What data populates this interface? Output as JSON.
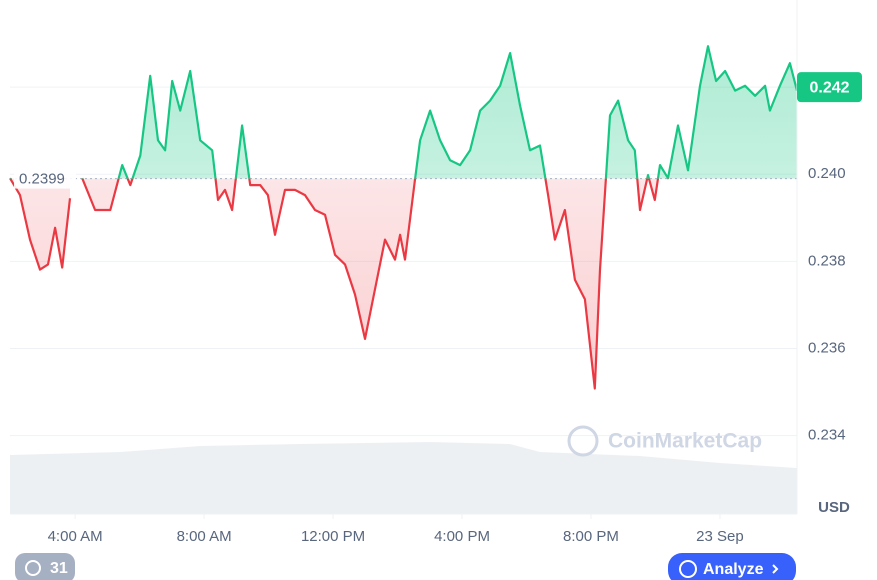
{
  "chart_data": {
    "type": "line",
    "x": [
      1.98,
      2.29,
      2.6,
      2.91,
      3.16,
      3.38,
      3.6,
      3.84,
      4.03,
      4.22,
      4.62,
      5.09,
      5.46,
      5.71,
      6.02,
      6.33,
      6.57,
      6.79,
      7.01,
      7.26,
      7.57,
      7.88,
      8.25,
      8.43,
      8.65,
      8.87,
      9.18,
      9.43,
      9.74,
      9.98,
      10.2,
      10.51,
      10.82,
      11.13,
      11.44,
      11.75,
      12.06,
      12.37,
      12.68,
      12.99,
      13.3,
      13.61,
      13.92,
      14.08,
      14.23,
      14.54,
      14.7,
      15.01,
      15.32,
      15.63,
      15.94,
      16.25,
      16.56,
      16.87,
      17.18,
      17.49,
      17.8,
      18.11,
      18.42,
      18.67,
      18.88,
      19.19,
      19.5,
      19.81,
      20.12,
      20.28,
      20.59,
      20.84,
      21.15,
      21.36,
      21.52,
      21.77,
      21.98,
      22.14,
      22.39,
      22.7,
      23.01,
      23.38,
      23.63,
      23.88,
      24.16,
      24.47,
      24.78,
      25.09,
      25.4,
      25.55,
      25.86,
      26.17,
      26.39
    ],
    "values": [
      0.23991,
      0.23952,
      0.2385,
      0.23781,
      0.23793,
      0.23877,
      0.23786,
      0.23945,
      null,
      0.23991,
      0.23918,
      0.23918,
      0.24021,
      0.23975,
      0.24043,
      0.24226,
      0.24078,
      0.24055,
      0.24214,
      0.24146,
      0.24237,
      0.24078,
      0.24055,
      0.23941,
      0.23964,
      0.23918,
      0.24112,
      0.23975,
      0.23975,
      0.23952,
      0.23861,
      0.23964,
      0.23964,
      0.23952,
      0.23918,
      0.23907,
      0.23815,
      0.23793,
      0.23724,
      0.23622,
      0.23736,
      0.2385,
      0.23804,
      0.23861,
      0.23804,
      0.23986,
      0.24078,
      0.24146,
      0.24078,
      0.24032,
      0.24021,
      0.24055,
      0.24146,
      0.24169,
      0.24203,
      0.24278,
      0.24157,
      0.24055,
      0.24066,
      0.23952,
      0.2385,
      0.23918,
      0.23758,
      0.23713,
      0.23508,
      0.23781,
      0.24135,
      0.24169,
      0.24078,
      0.24055,
      0.23918,
      0.23998,
      0.23941,
      0.24021,
      0.23991,
      0.24112,
      0.24009,
      0.24203,
      0.24294,
      0.24214,
      0.24237,
      0.24192,
      0.24203,
      0.2418,
      0.24203,
      0.24146,
      0.24203,
      0.24255,
      0.24192
    ],
    "baseline": 0.2399,
    "last_price": 0.242,
    "up_color": "#16c784",
    "down_color": "#ea3943",
    "xlim": [
      1.98,
      26.39
    ],
    "xticks": [
      {
        "value": 4,
        "label": "4:00 AM"
      },
      {
        "value": 8,
        "label": "8:00 AM"
      },
      {
        "value": 12,
        "label": "12:00 PM"
      },
      {
        "value": 16,
        "label": "4:00 PM"
      },
      {
        "value": 20,
        "label": "8:00 PM"
      },
      {
        "value": 24,
        "label": "23 Sep"
      }
    ],
    "ylim": [
      0.2322,
      0.244
    ],
    "yticks": [
      0.234,
      0.236,
      0.238,
      {
        "value": 0.24,
        "label": "0.240"
      },
      0.242
    ],
    "y_unit": "USD",
    "grid": true,
    "watermark": "CoinMarketCap"
  },
  "ui": {
    "history_count": 31,
    "analyze": "Analyze"
  }
}
